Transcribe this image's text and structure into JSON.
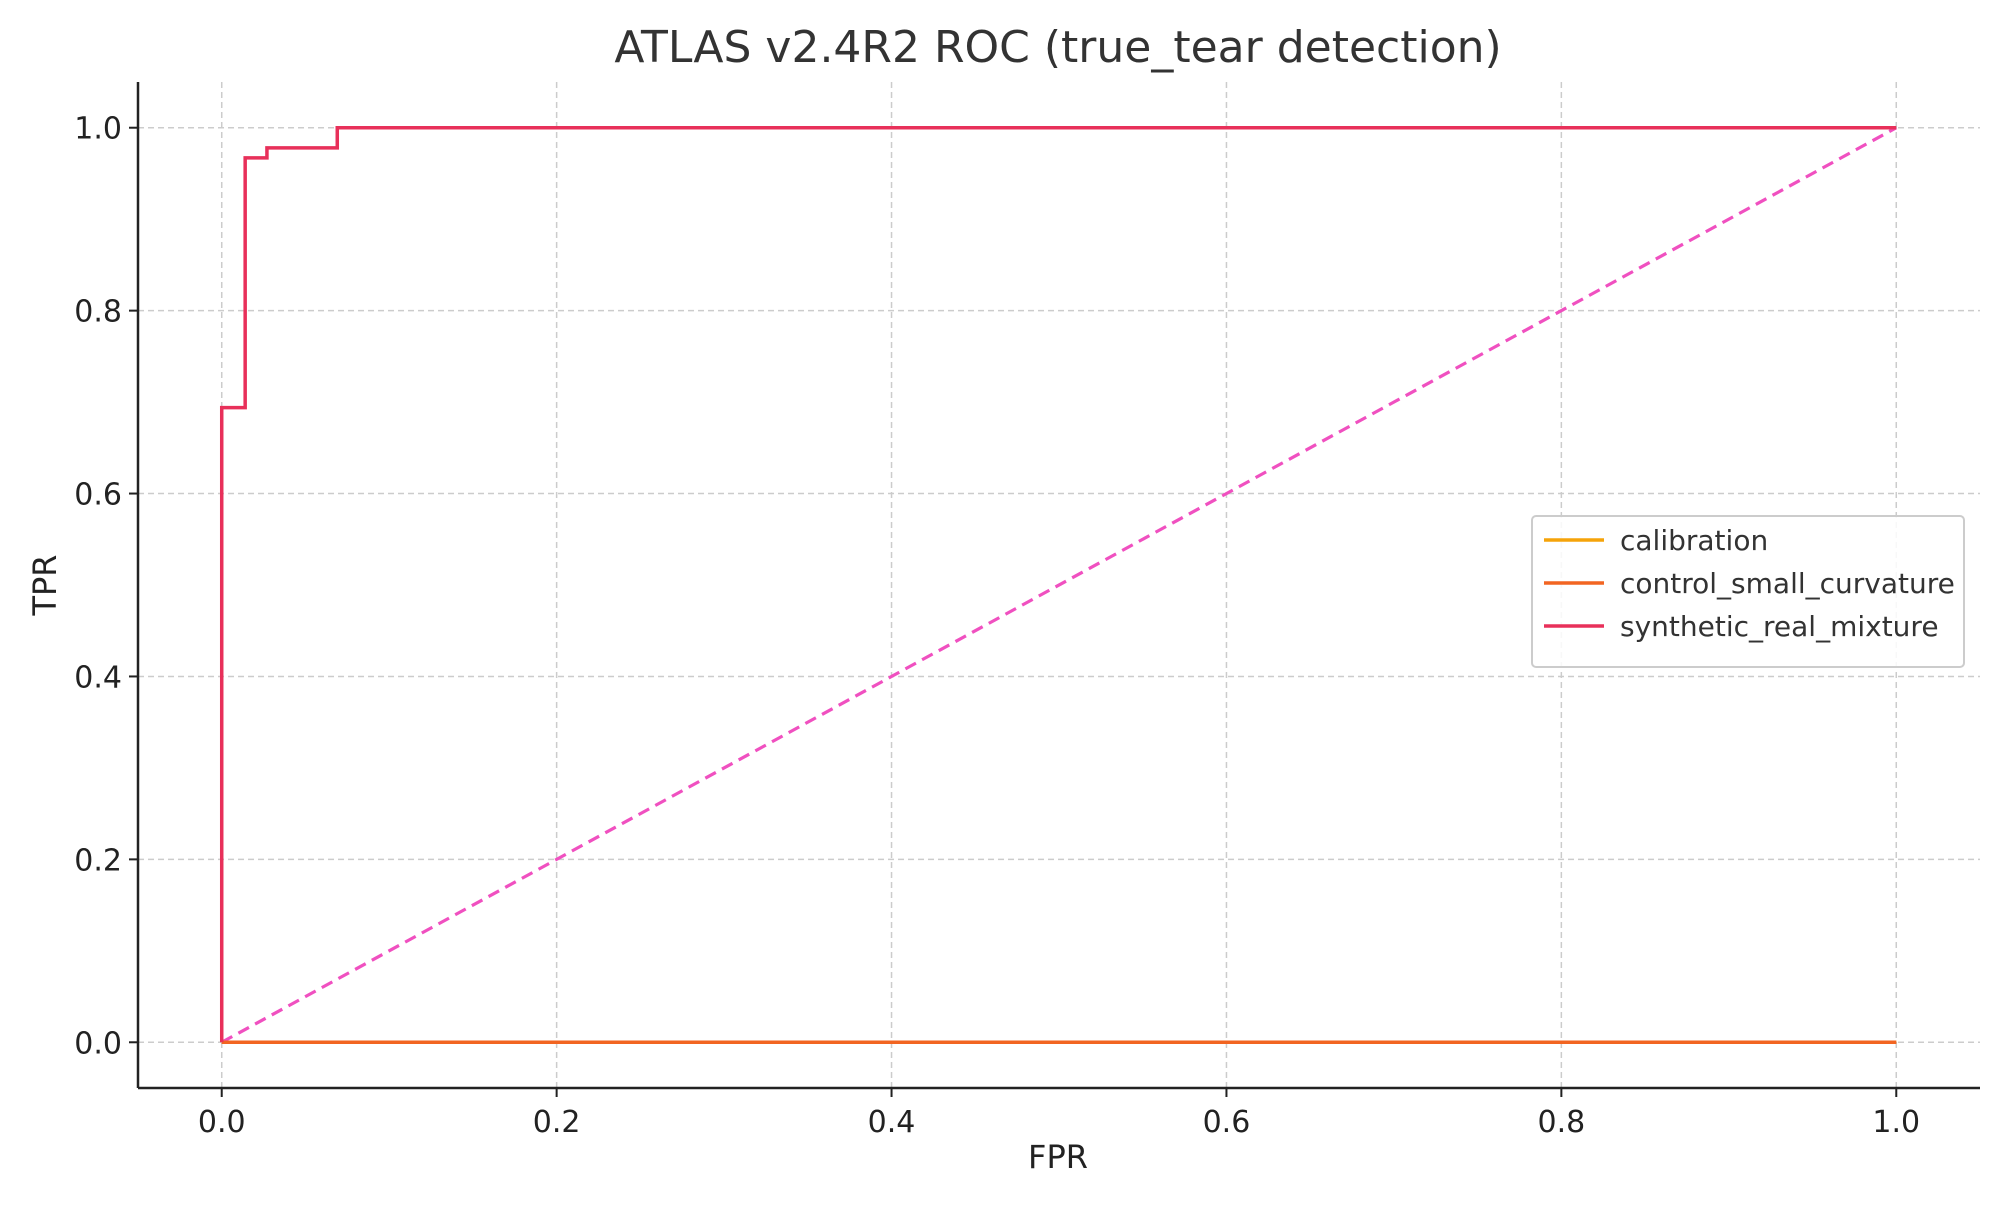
{
  "chart_data": {
    "type": "line",
    "title": "ATLAS v2.4R2 ROC (true_tear detection)",
    "xlabel": "FPR",
    "ylabel": "TPR",
    "xlim": [
      -0.05,
      1.05
    ],
    "ylim": [
      -0.05,
      1.05
    ],
    "xticks": [
      0.0,
      0.2,
      0.4,
      0.6,
      0.8,
      1.0
    ],
    "yticks": [
      0.0,
      0.2,
      0.4,
      0.6,
      0.8,
      1.0
    ],
    "xtick_labels": [
      "0.0",
      "0.2",
      "0.4",
      "0.6",
      "0.8",
      "1.0"
    ],
    "ytick_labels": [
      "0.0",
      "0.2",
      "0.4",
      "0.6",
      "0.8",
      "1.0"
    ],
    "grid": true,
    "legend_position": "center-right",
    "series": [
      {
        "name": "calibration",
        "color": "#f5a30a",
        "style": "solid",
        "x": [
          0.0,
          1.0
        ],
        "y": [
          0.0,
          0.0
        ]
      },
      {
        "name": "control_small_curvature",
        "color": "#f26522",
        "style": "solid",
        "x": [
          0.0,
          1.0
        ],
        "y": [
          0.0,
          0.0
        ]
      },
      {
        "name": "synthetic_real_mixture",
        "color": "#e8305a",
        "style": "solid",
        "x": [
          0.0,
          0.0,
          0.014,
          0.014,
          0.027,
          0.027,
          0.069,
          0.069,
          1.0
        ],
        "y": [
          0.0,
          0.694,
          0.694,
          0.967,
          0.967,
          0.978,
          0.978,
          1.0,
          1.0
        ]
      }
    ],
    "reference_line": {
      "color": "#f050c0",
      "style": "dashed",
      "x": [
        0.0,
        1.0
      ],
      "y": [
        0.0,
        1.0
      ]
    }
  }
}
